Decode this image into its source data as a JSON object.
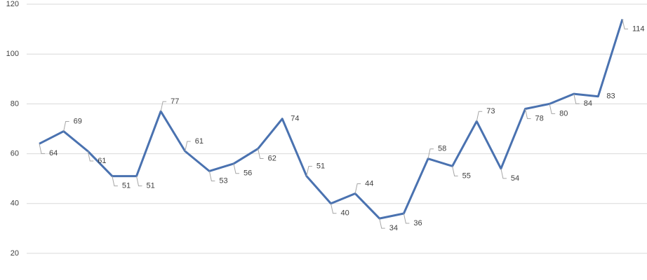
{
  "chart_data": {
    "type": "line",
    "categories": [
      null,
      null,
      null,
      null,
      null,
      null,
      null,
      null,
      null,
      null,
      null,
      null,
      null,
      null,
      null,
      null,
      null,
      null,
      null,
      null,
      null,
      null,
      null,
      null,
      null
    ],
    "values": [
      64,
      69,
      61,
      51,
      51,
      77,
      61,
      53,
      56,
      62,
      74,
      51,
      40,
      44,
      34,
      36,
      58,
      55,
      73,
      54,
      78,
      80,
      84,
      83,
      114
    ],
    "color": "#4a72b0",
    "ylim": [
      9.3,
      121.7
    ],
    "yticks": [
      20,
      40,
      60,
      80,
      100,
      120
    ],
    "grid": true
  }
}
